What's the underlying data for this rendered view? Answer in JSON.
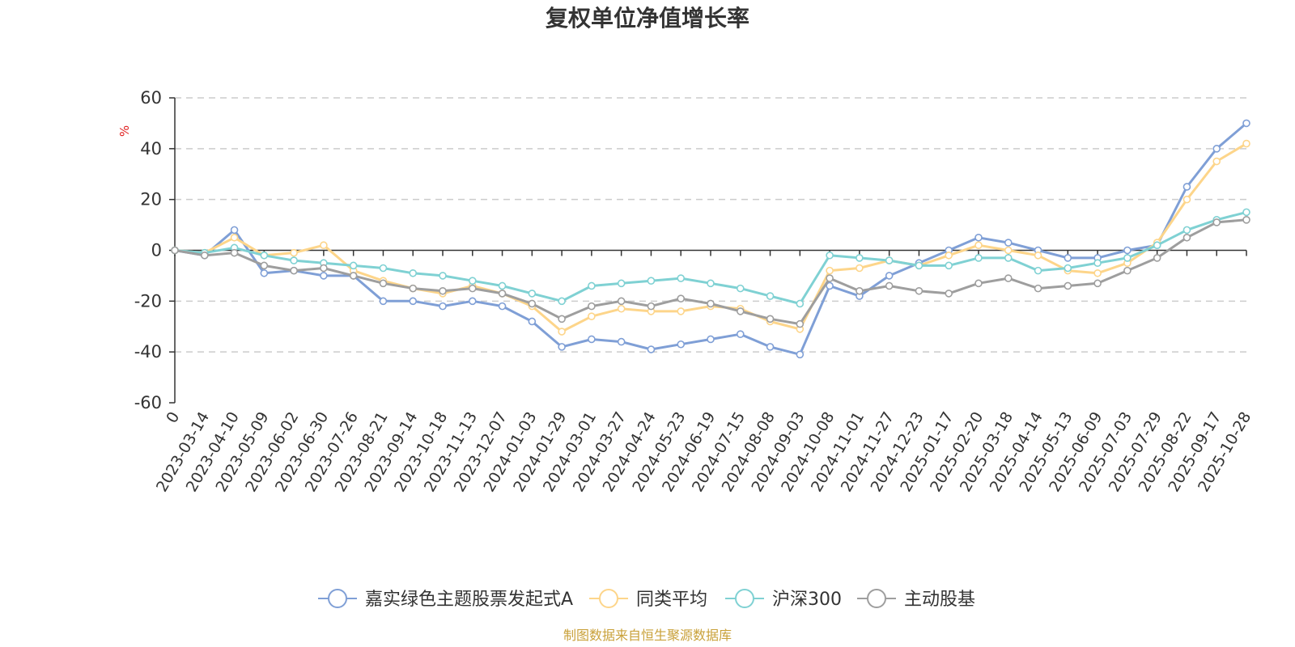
{
  "chart_data": {
    "type": "line",
    "title": "复权单位净值增长率",
    "ylabel": "%",
    "ylim": [
      -60,
      60
    ],
    "yticks": [
      60,
      40,
      20,
      0,
      -20,
      -40,
      -60
    ],
    "grid": true,
    "legend_position": "bottom",
    "source": "制图数据来自恒生聚源数据库",
    "x": [
      "0",
      "2023-03-14",
      "2023-04-10",
      "2023-05-09",
      "2023-06-02",
      "2023-06-30",
      "2023-07-26",
      "2023-08-21",
      "2023-09-14",
      "2023-10-18",
      "2023-11-13",
      "2023-12-07",
      "2024-01-03",
      "2024-01-29",
      "2024-03-01",
      "2024-03-27",
      "2024-04-24",
      "2024-05-23",
      "2024-06-19",
      "2024-07-15",
      "2024-08-08",
      "2024-09-03",
      "2024-10-08",
      "2024-11-01",
      "2024-11-27",
      "2024-12-23",
      "2025-01-17",
      "2025-02-20",
      "2025-03-18",
      "2025-04-14",
      "2025-05-13",
      "2025-06-09",
      "2025-07-03",
      "2025-07-29",
      "2025-08-22",
      "2025-09-17",
      "2025-10-28"
    ],
    "series": [
      {
        "name": "嘉实绿色主题股票发起式A",
        "color": "#7f9fd6",
        "values": [
          0,
          -2,
          8,
          -9,
          -8,
          -10,
          -10,
          -20,
          -20,
          -22,
          -20,
          -22,
          -28,
          -38,
          -35,
          -36,
          -39,
          -37,
          -35,
          -33,
          -38,
          -41,
          -14,
          -18,
          -10,
          -5,
          0,
          5,
          3,
          0,
          -3,
          -3,
          0,
          2,
          25,
          40,
          50
        ]
      },
      {
        "name": "同类平均",
        "color": "#fdd58a",
        "values": [
          0,
          -1,
          5,
          -2,
          -1,
          2,
          -8,
          -12,
          -15,
          -17,
          -14,
          -17,
          -22,
          -32,
          -26,
          -23,
          -24,
          -24,
          -22,
          -23,
          -28,
          -31,
          -8,
          -7,
          -4,
          -6,
          -2,
          2,
          0,
          -2,
          -8,
          -9,
          -5,
          3,
          20,
          35,
          42
        ]
      },
      {
        "name": "沪深300",
        "color": "#7fd1d3",
        "values": [
          0,
          -1,
          1,
          -2,
          -4,
          -5,
          -6,
          -7,
          -9,
          -10,
          -12,
          -14,
          -17,
          -20,
          -14,
          -13,
          -12,
          -11,
          -13,
          -15,
          -18,
          -21,
          -2,
          -3,
          -4,
          -6,
          -6,
          -3,
          -3,
          -8,
          -7,
          -5,
          -3,
          2,
          8,
          12,
          15
        ]
      },
      {
        "name": "主动股基",
        "color": "#9e9e9e",
        "values": [
          0,
          -2,
          -1,
          -6,
          -8,
          -7,
          -10,
          -13,
          -15,
          -16,
          -15,
          -17,
          -21,
          -27,
          -22,
          -20,
          -22,
          -19,
          -21,
          -24,
          -27,
          -29,
          -11,
          -16,
          -14,
          -16,
          -17,
          -13,
          -11,
          -15,
          -14,
          -13,
          -8,
          -3,
          5,
          11,
          12
        ]
      }
    ]
  }
}
